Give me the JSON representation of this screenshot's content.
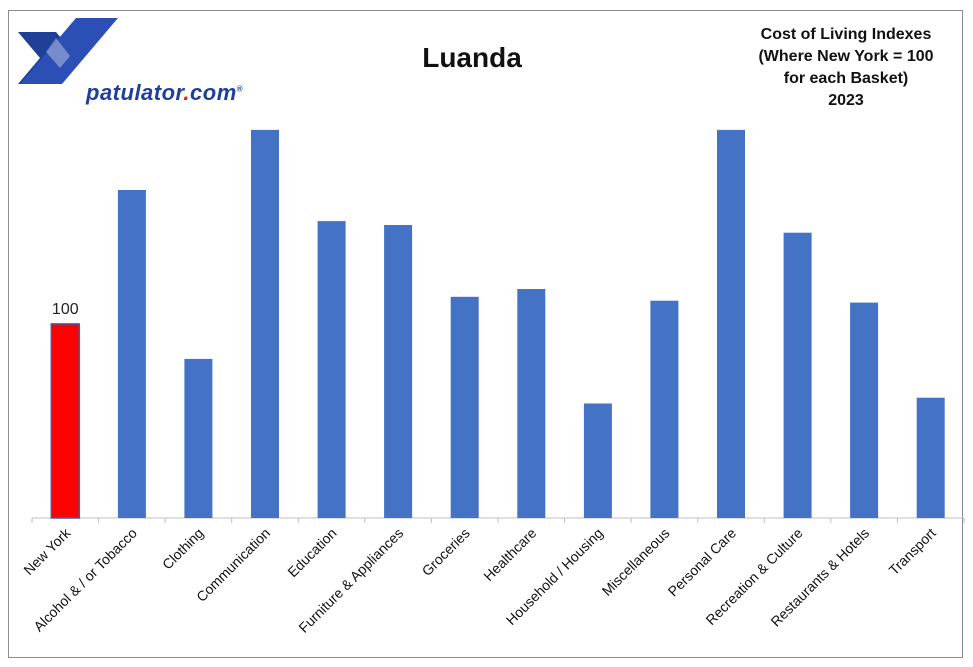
{
  "branding": {
    "logo_name": "patulator",
    "logo_dot": ".",
    "logo_suffix": "com",
    "logo_mark": "®"
  },
  "header": {
    "title": "Luanda",
    "subtitle_lines": [
      "Cost of Living Indexes",
      "(Where New York = 100",
      "for each Basket)",
      "2023"
    ]
  },
  "colors": {
    "baseline_bar": "#ff0000",
    "city_bar": "#4472c4",
    "baseline_outline": "#3a5ea8"
  },
  "chart_data": {
    "type": "bar",
    "title": "Luanda",
    "xlabel": "",
    "ylabel": "",
    "ylim": [
      0,
      202
    ],
    "grid": false,
    "categories": [
      "New York",
      "Alcohol & / or Tobacco",
      "Clothing",
      "Communication",
      "Education",
      "Furniture & Appliances",
      "Groceries",
      "Healthcare",
      "Household / Housing",
      "Miscellaneous",
      "Personal Care",
      "Recreation & Culture",
      "Restaurants & Hotels",
      "Transport"
    ],
    "values": [
      100,
      169,
      82,
      200,
      153,
      151,
      114,
      118,
      59,
      112,
      200,
      147,
      111,
      62
    ],
    "data_labels": [
      {
        "category": "New York",
        "text": "100"
      }
    ]
  }
}
